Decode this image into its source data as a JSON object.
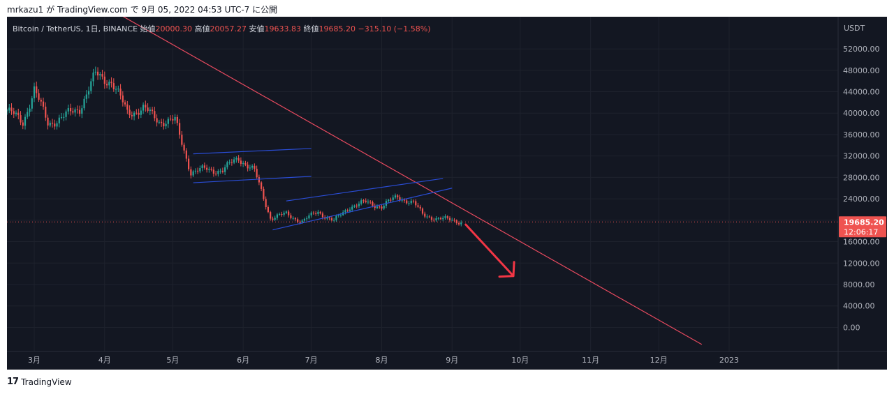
{
  "header": {
    "user": "mrkazu1",
    "via": "が",
    "site": "TradingView.com",
    "de": "で",
    "datetime": "9月 05, 2022 04:53 UTC-7",
    "published": "に公開"
  },
  "legend": {
    "symbol": "Bitcoin / TetherUS, 1日, BINANCE",
    "open_label": "始値",
    "open": "20000.30",
    "high_label": "高値",
    "high": "20057.27",
    "low_label": "安値",
    "low": "19633.83",
    "close_label": "終値",
    "close": "19685.20",
    "change": "−315.10 (−1.58%)"
  },
  "footer": {
    "logo_mark": "17",
    "logo_text": "TradingView"
  },
  "colors": {
    "background": "#131722",
    "grid": "#1e222d",
    "up": "#26a69a",
    "down": "#ef5350",
    "trend_line": "#e84a5f",
    "channel": "#2a4dd6",
    "arrow": "#f23645",
    "text": "#b2b5be"
  },
  "chart_data": {
    "type": "candlestick",
    "symbol": "Bitcoin / TetherUS",
    "interval": "1日",
    "exchange": "BINANCE",
    "y_axis_label": "USDT",
    "y_ticks": [
      0,
      4000,
      8000,
      12000,
      16000,
      20000,
      24000,
      28000,
      32000,
      36000,
      40000,
      44000,
      48000,
      52000
    ],
    "y_tick_labels": [
      "0.00",
      "4000.00",
      "8000.00",
      "12000.00",
      "16000.00",
      "20000.00",
      "24000.00",
      "28000.00",
      "32000.00",
      "36000.00",
      "40000.00",
      "44000.00",
      "48000.00",
      "52000.00"
    ],
    "ylim": [
      -4500,
      58000
    ],
    "x_ticks": [
      {
        "date": "2022-03-01",
        "label": "3月"
      },
      {
        "date": "2022-04-01",
        "label": "4月"
      },
      {
        "date": "2022-05-01",
        "label": "5月"
      },
      {
        "date": "2022-06-01",
        "label": "6月"
      },
      {
        "date": "2022-07-01",
        "label": "7月"
      },
      {
        "date": "2022-08-01",
        "label": "8月"
      },
      {
        "date": "2022-09-01",
        "label": "9月"
      },
      {
        "date": "2022-10-01",
        "label": "10月"
      },
      {
        "date": "2022-11-01",
        "label": "11月"
      },
      {
        "date": "2022-12-01",
        "label": "12月"
      },
      {
        "date": "2023-01-01",
        "label": "2023"
      }
    ],
    "xlim": [
      "2022-02-17",
      "2023-02-18"
    ],
    "last_price": "19685.20",
    "last_price_value": 19685.2,
    "countdown": "12:06:17",
    "close_series": [
      {
        "date": "2022-02-17",
        "close": 40500
      },
      {
        "date": "2022-02-24",
        "close": 38300
      },
      {
        "date": "2022-03-01",
        "close": 44400
      },
      {
        "date": "2022-03-07",
        "close": 38100
      },
      {
        "date": "2022-03-14",
        "close": 39300
      },
      {
        "date": "2022-03-21",
        "close": 41000
      },
      {
        "date": "2022-03-28",
        "close": 47100
      },
      {
        "date": "2022-04-04",
        "close": 46000
      },
      {
        "date": "2022-04-11",
        "close": 40100
      },
      {
        "date": "2022-04-18",
        "close": 40800
      },
      {
        "date": "2022-04-25",
        "close": 38600
      },
      {
        "date": "2022-05-02",
        "close": 38500
      },
      {
        "date": "2022-05-09",
        "close": 29000
      },
      {
        "date": "2022-05-16",
        "close": 29500
      },
      {
        "date": "2022-05-23",
        "close": 29300
      },
      {
        "date": "2022-05-30",
        "close": 31700
      },
      {
        "date": "2022-06-06",
        "close": 29100
      },
      {
        "date": "2022-06-13",
        "close": 20500
      },
      {
        "date": "2022-06-20",
        "close": 21100
      },
      {
        "date": "2022-06-27",
        "close": 19800
      },
      {
        "date": "2022-07-04",
        "close": 21600
      },
      {
        "date": "2022-07-11",
        "close": 19800
      },
      {
        "date": "2022-07-18",
        "close": 22600
      },
      {
        "date": "2022-07-25",
        "close": 23300
      },
      {
        "date": "2022-08-01",
        "close": 22600
      },
      {
        "date": "2022-08-08",
        "close": 24400
      },
      {
        "date": "2022-08-15",
        "close": 23200
      },
      {
        "date": "2022-08-19",
        "close": 21100
      },
      {
        "date": "2022-08-26",
        "close": 20200
      },
      {
        "date": "2022-09-01",
        "close": 20100
      },
      {
        "date": "2022-09-05",
        "close": 19685
      }
    ],
    "annotations": {
      "long_trend_line": [
        {
          "date": "2022-04-01",
          "price": 60000
        },
        {
          "date": "2022-12-20",
          "price": -3200
        }
      ],
      "channel_may_upper": [
        {
          "date": "2022-05-10",
          "price": 32400
        },
        {
          "date": "2022-07-01",
          "price": 33400
        }
      ],
      "channel_may_lower": [
        {
          "date": "2022-05-10",
          "price": 27000
        },
        {
          "date": "2022-07-01",
          "price": 28200
        }
      ],
      "channel_summer_upper": [
        {
          "date": "2022-06-20",
          "price": 23600
        },
        {
          "date": "2022-08-28",
          "price": 27800
        }
      ],
      "channel_summer_lower": [
        {
          "date": "2022-06-14",
          "price": 18200
        },
        {
          "date": "2022-09-01",
          "price": 26000
        }
      ],
      "down_arrow": [
        {
          "date": "2022-09-07",
          "price": 19200
        },
        {
          "date": "2022-09-28",
          "price": 9600
        }
      ]
    }
  }
}
